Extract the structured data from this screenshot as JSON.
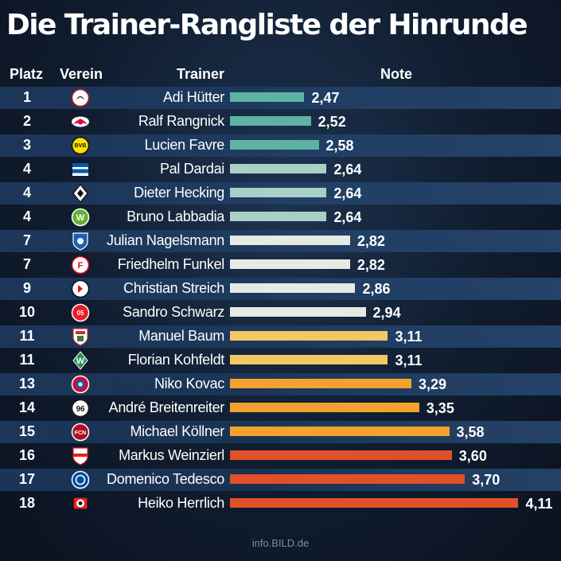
{
  "title": "Die Trainer-Rangliste der Hinrunde",
  "headers": {
    "platz": "Platz",
    "verein": "Verein",
    "trainer": "Trainer",
    "note": "Note"
  },
  "footer": "info.BILD.de",
  "chart_data": {
    "type": "bar",
    "orientation": "horizontal",
    "title": "Die Trainer-Rangliste der Hinrunde",
    "columns": [
      "Platz",
      "Verein",
      "Trainer",
      "Note"
    ],
    "rows": [
      {
        "rank": "1",
        "club_icon": "eintracht-frankfurt-crest",
        "trainer": "Adi Hütter",
        "note": 2.47,
        "note_label": "2,47",
        "color": "#5fb3a4"
      },
      {
        "rank": "2",
        "club_icon": "rb-leipzig-crest",
        "trainer": "Ralf Rangnick",
        "note": 2.52,
        "note_label": "2,52",
        "color": "#5fb3a4"
      },
      {
        "rank": "3",
        "club_icon": "borussia-dortmund-crest",
        "trainer": "Lucien Favre",
        "note": 2.58,
        "note_label": "2,58",
        "color": "#5fb3a4"
      },
      {
        "rank": "4",
        "club_icon": "hertha-bsc-crest",
        "trainer": "Pal Dardai",
        "note": 2.64,
        "note_label": "2,64",
        "color": "#a9cfc6"
      },
      {
        "rank": "4",
        "club_icon": "borussia-mgladbach-crest",
        "trainer": "Dieter Hecking",
        "note": 2.64,
        "note_label": "2,64",
        "color": "#a9cfc6"
      },
      {
        "rank": "4",
        "club_icon": "vfl-wolfsburg-crest",
        "trainer": "Bruno Labbadia",
        "note": 2.64,
        "note_label": "2,64",
        "color": "#a9cfc6"
      },
      {
        "rank": "7",
        "club_icon": "tsg-hoffenheim-crest",
        "trainer": "Julian Nagelsmann",
        "note": 2.82,
        "note_label": "2,82",
        "color": "#e6eae4"
      },
      {
        "rank": "7",
        "club_icon": "fortuna-duesseldorf-crest",
        "trainer": "Friedhelm Funkel",
        "note": 2.82,
        "note_label": "2,82",
        "color": "#e6eae4"
      },
      {
        "rank": "9",
        "club_icon": "sc-freiburg-crest",
        "trainer": "Christian Streich",
        "note": 2.86,
        "note_label": "2,86",
        "color": "#e6eae4"
      },
      {
        "rank": "10",
        "club_icon": "mainz-05-crest",
        "trainer": "Sandro Schwarz",
        "note": 2.94,
        "note_label": "2,94",
        "color": "#e6eae4"
      },
      {
        "rank": "11",
        "club_icon": "fc-augsburg-crest",
        "trainer": "Manuel Baum",
        "note": 3.11,
        "note_label": "3,11",
        "color": "#f2c766"
      },
      {
        "rank": "11",
        "club_icon": "werder-bremen-crest",
        "trainer": "Florian Kohfeldt",
        "note": 3.11,
        "note_label": "3,11",
        "color": "#f2c766"
      },
      {
        "rank": "13",
        "club_icon": "fc-bayern-crest",
        "trainer": "Niko Kovac",
        "note": 3.29,
        "note_label": "3,29",
        "color": "#f4a22d"
      },
      {
        "rank": "14",
        "club_icon": "hannover-96-crest",
        "trainer": "André Breitenreiter",
        "note": 3.35,
        "note_label": "3,35",
        "color": "#f4a22d"
      },
      {
        "rank": "15",
        "club_icon": "fc-nuernberg-crest",
        "trainer": "Michael Köllner",
        "note": 3.58,
        "note_label": "3,58",
        "color": "#f4a22d"
      },
      {
        "rank": "16",
        "club_icon": "vfb-stuttgart-crest",
        "trainer": "Markus Weinzierl",
        "note": 3.6,
        "note_label": "3,60",
        "color": "#e2502a"
      },
      {
        "rank": "17",
        "club_icon": "schalke-04-crest",
        "trainer": "Domenico Tedesco",
        "note": 3.7,
        "note_label": "3,70",
        "color": "#e2502a"
      },
      {
        "rank": "18",
        "club_icon": "bayer-leverkusen-crest",
        "trainer": "Heiko Herrlich",
        "note": 4.11,
        "note_label": "4,11",
        "color": "#e2502a"
      }
    ]
  }
}
